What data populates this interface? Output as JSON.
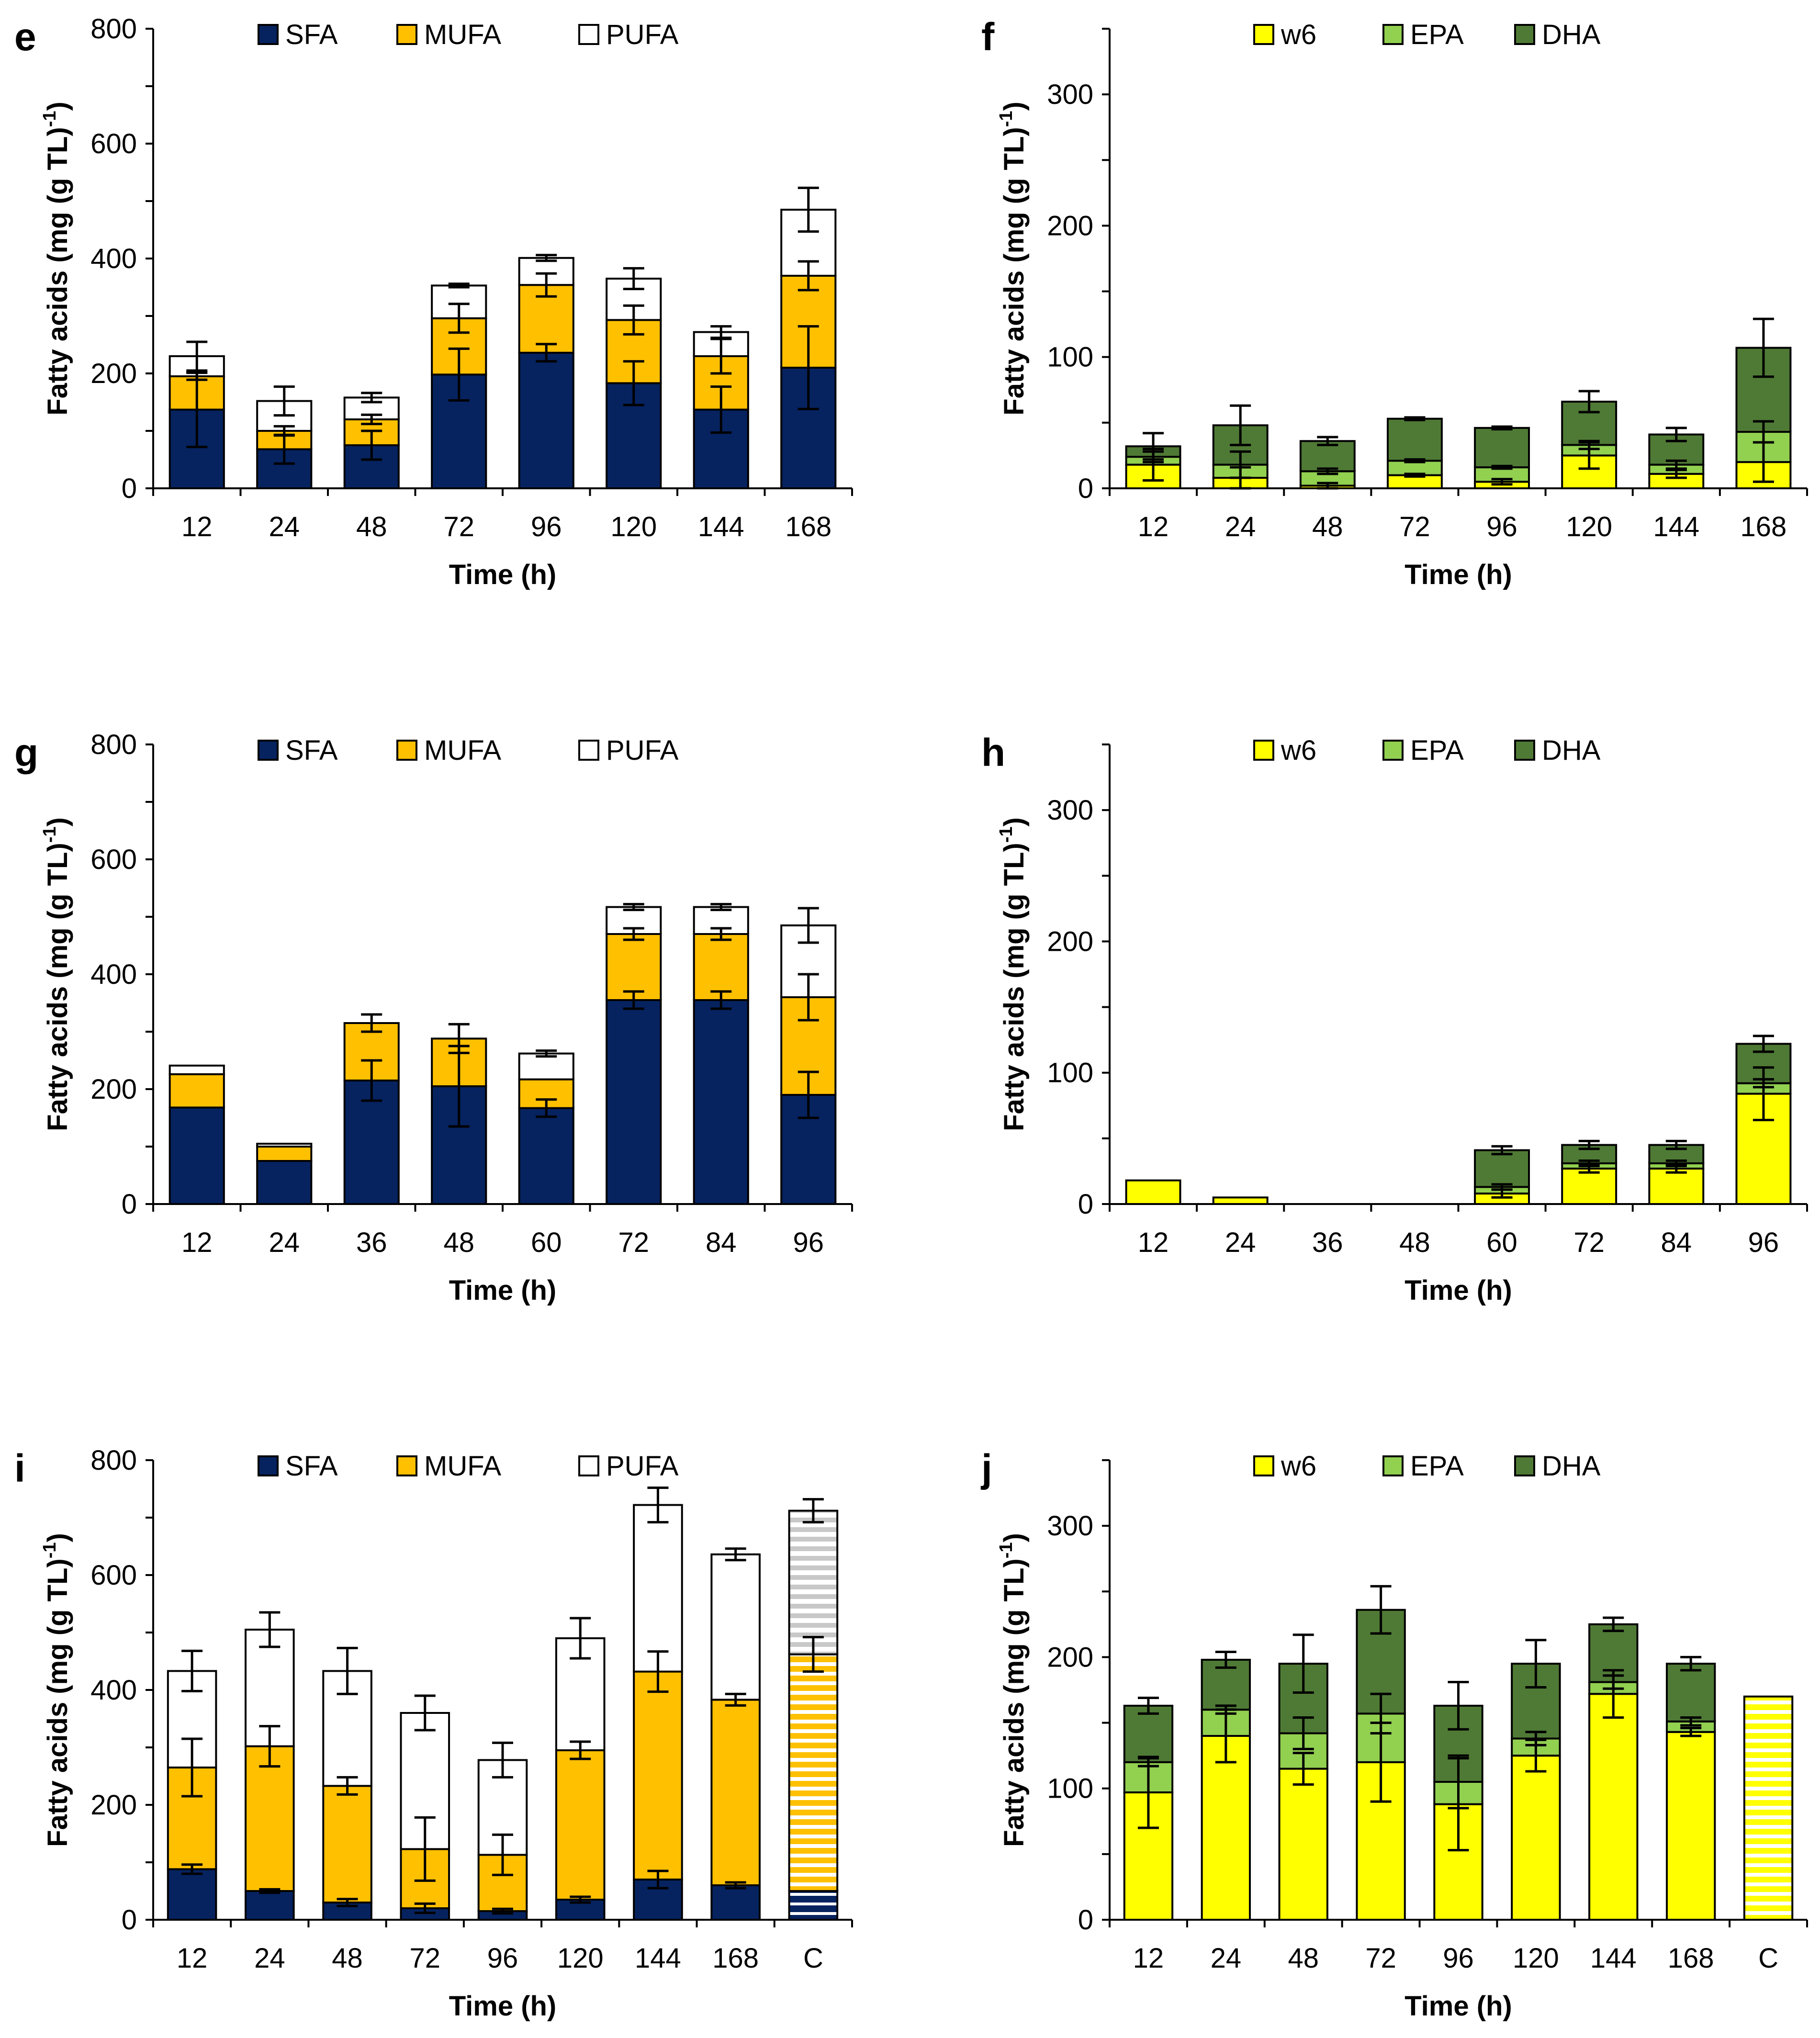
{
  "colors": {
    "SFA": "#062360",
    "MUFA": "#FFC000",
    "PUFA": "#FFFFFF",
    "w6": "#FFFF00",
    "EPA": "#92D050",
    "DHA": "#4F7A35"
  },
  "chart_data": [
    {
      "panel": "e",
      "type": "bar",
      "stacked": true,
      "title": "",
      "xlabel": "Time (h)",
      "ylabel": "Fatty acids (mg (g TL)-1)",
      "ylim": [
        0,
        800
      ],
      "yticks": [
        "0",
        "200",
        "400",
        "600",
        "800"
      ],
      "legend_position": "top",
      "categories": [
        "12",
        "24",
        "48",
        "72",
        "96",
        "120",
        "144",
        "168"
      ],
      "series": [
        {
          "name": "SFA",
          "color": "#062360",
          "values": [
            137,
            68,
            75,
            198,
            236,
            183,
            137,
            210
          ],
          "errors": [
            65,
            25,
            25,
            45,
            15,
            38,
            40,
            72
          ]
        },
        {
          "name": "MUFA",
          "color": "#FFC000",
          "values": [
            58,
            32,
            45,
            98,
            118,
            110,
            93,
            160
          ],
          "errors": [
            6,
            8,
            8,
            25,
            20,
            25,
            30,
            25
          ]
        },
        {
          "name": "PUFA",
          "color": "#FFFFFF",
          "values": [
            35,
            52,
            38,
            57,
            47,
            72,
            42,
            115
          ],
          "errors": [
            25,
            25,
            8,
            3,
            5,
            18,
            10,
            38
          ]
        }
      ]
    },
    {
      "panel": "f",
      "type": "bar",
      "stacked": true,
      "title": "",
      "xlabel": "Time (h)",
      "ylabel": "Fatty acids (mg (g TL)-1)",
      "ylim": [
        0,
        350
      ],
      "yticks": [
        "0",
        "100",
        "200",
        "300"
      ],
      "legend_position": "top",
      "categories": [
        "12",
        "24",
        "48",
        "72",
        "96",
        "120",
        "144",
        "168"
      ],
      "series": [
        {
          "name": "w6",
          "color": "#FFFF00",
          "values": [
            18,
            8,
            2,
            10,
            5,
            25,
            11,
            20
          ],
          "errors": [
            12,
            8,
            2,
            1,
            2,
            10,
            3,
            15
          ]
        },
        {
          "name": "EPA",
          "color": "#92D050",
          "values": [
            6,
            10,
            11,
            11,
            11,
            8,
            7,
            23
          ],
          "errors": [
            4,
            10,
            2,
            1,
            1,
            3,
            3,
            8
          ]
        },
        {
          "name": "DHA",
          "color": "#4F7A35",
          "values": [
            8,
            30,
            23,
            32,
            30,
            33,
            23,
            64
          ],
          "errors": [
            10,
            15,
            3,
            1,
            1,
            8,
            5,
            22
          ]
        }
      ]
    },
    {
      "panel": "g",
      "type": "bar",
      "stacked": true,
      "title": "",
      "xlabel": "Time (h)",
      "ylabel": "Fatty acids (mg (g TL)-1)",
      "ylim": [
        0,
        800
      ],
      "yticks": [
        "0",
        "200",
        "400",
        "600",
        "800"
      ],
      "legend_position": "top",
      "categories": [
        "12",
        "24",
        "36",
        "48",
        "60",
        "72",
        "84",
        "96"
      ],
      "series": [
        {
          "name": "SFA",
          "color": "#062360",
          "values": [
            168,
            75,
            215,
            205,
            167,
            355,
            355,
            190
          ],
          "errors": [
            0,
            0,
            35,
            70,
            15,
            15,
            15,
            40
          ]
        },
        {
          "name": "MUFA",
          "color": "#FFC000",
          "values": [
            58,
            25,
            100,
            83,
            50,
            115,
            115,
            170
          ],
          "errors": [
            0,
            0,
            0,
            0,
            0,
            10,
            10,
            40
          ]
        },
        {
          "name": "PUFA",
          "color": "#FFFFFF",
          "values": [
            15,
            5,
            0,
            0,
            45,
            47,
            47,
            125
          ],
          "errors": [
            0,
            0,
            15,
            25,
            5,
            5,
            5,
            30
          ]
        }
      ]
    },
    {
      "panel": "h",
      "type": "bar",
      "stacked": true,
      "title": "",
      "xlabel": "Time (h)",
      "ylabel": "Fatty acids (mg (g TL)-1)",
      "ylim": [
        0,
        350
      ],
      "yticks": [
        "0",
        "100",
        "200",
        "300"
      ],
      "legend_position": "top",
      "categories": [
        "12",
        "24",
        "36",
        "48",
        "60",
        "72",
        "84",
        "96"
      ],
      "series": [
        {
          "name": "w6",
          "color": "#FFFF00",
          "values": [
            18,
            5,
            0,
            0,
            8,
            27,
            27,
            84
          ],
          "errors": [
            0,
            0,
            0,
            0,
            3,
            3,
            3,
            20
          ]
        },
        {
          "name": "EPA",
          "color": "#92D050",
          "values": [
            0,
            0,
            0,
            0,
            5,
            4,
            4,
            8
          ],
          "errors": [
            0,
            0,
            0,
            0,
            2,
            2,
            2,
            3
          ]
        },
        {
          "name": "DHA",
          "color": "#4F7A35",
          "values": [
            0,
            0,
            0,
            0,
            28,
            14,
            14,
            30
          ],
          "errors": [
            0,
            0,
            0,
            0,
            3,
            3,
            3,
            6
          ]
        }
      ]
    },
    {
      "panel": "i",
      "type": "bar",
      "stacked": true,
      "title": "",
      "xlabel": "Time (h)",
      "ylabel": "Fatty acids (mg (g TL)-1)",
      "ylim": [
        0,
        800
      ],
      "yticks": [
        "0",
        "200",
        "400",
        "600",
        "800"
      ],
      "legend_position": "top",
      "categories": [
        "12",
        "24",
        "48",
        "72",
        "96",
        "120",
        "144",
        "168",
        "C"
      ],
      "hatched_category": "C",
      "series": [
        {
          "name": "SFA",
          "color": "#062360",
          "values": [
            88,
            50,
            30,
            20,
            15,
            35,
            70,
            60,
            50
          ],
          "errors": [
            8,
            3,
            6,
            8,
            4,
            5,
            15,
            5,
            0
          ]
        },
        {
          "name": "MUFA",
          "color": "#FFC000",
          "values": [
            177,
            252,
            203,
            103,
            98,
            260,
            362,
            323,
            412
          ],
          "errors": [
            50,
            35,
            15,
            55,
            35,
            15,
            35,
            10,
            30
          ]
        },
        {
          "name": "PUFA",
          "color": "#FFFFFF",
          "values": [
            168,
            203,
            200,
            237,
            165,
            195,
            290,
            253,
            250
          ],
          "errors": [
            35,
            30,
            40,
            30,
            30,
            35,
            30,
            10,
            20
          ]
        }
      ]
    },
    {
      "panel": "j",
      "type": "bar",
      "stacked": true,
      "title": "",
      "xlabel": "Time (h)",
      "ylabel": "Fatty acids (mg (g TL)-1)",
      "ylim": [
        0,
        350
      ],
      "yticks": [
        "0",
        "100",
        "200",
        "300"
      ],
      "legend_position": "top",
      "categories": [
        "12",
        "24",
        "48",
        "72",
        "96",
        "120",
        "144",
        "168",
        "C"
      ],
      "hatched_category": "C",
      "series": [
        {
          "name": "w6",
          "color": "#FFFF00",
          "values": [
            97,
            140,
            115,
            120,
            88,
            125,
            172,
            143,
            170
          ],
          "errors": [
            27,
            20,
            12,
            30,
            35,
            12,
            18,
            3,
            0
          ]
        },
        {
          "name": "EPA",
          "color": "#92D050",
          "values": [
            23,
            20,
            27,
            37,
            17,
            13,
            9,
            8,
            0
          ],
          "errors": [
            3,
            3,
            12,
            15,
            20,
            5,
            5,
            3,
            0
          ]
        },
        {
          "name": "DHA",
          "color": "#4F7A35",
          "values": [
            43,
            38,
            53,
            79,
            58,
            57,
            44,
            44,
            0
          ],
          "errors": [
            6,
            6,
            22,
            18,
            18,
            18,
            5,
            5,
            0
          ]
        }
      ]
    }
  ]
}
